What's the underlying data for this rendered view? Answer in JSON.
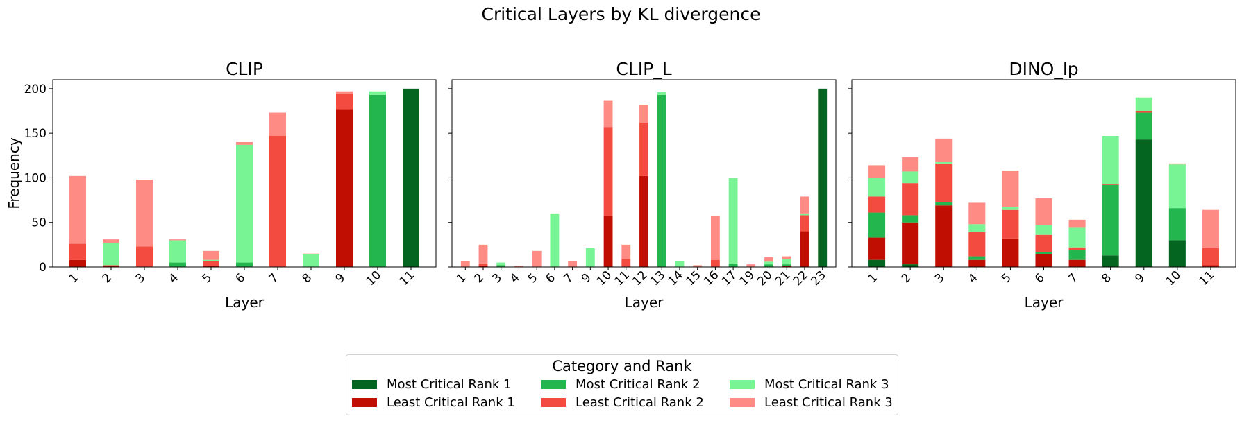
{
  "figure_title": "Critical Layers by KL divergence",
  "legend": {
    "title": "Category and Rank",
    "entries": [
      {
        "label": "Most Critical Rank 1",
        "color": "#03651f"
      },
      {
        "label": "Least Critical Rank 1",
        "color": "#c00e03"
      },
      {
        "label": "Most Critical Rank 2",
        "color": "#23b54e"
      },
      {
        "label": "Least Critical Rank 2",
        "color": "#f34b3f"
      },
      {
        "label": "Most Critical Rank 3",
        "color": "#79f494"
      },
      {
        "label": "Least Critical Rank 3",
        "color": "#fe8b84"
      }
    ]
  },
  "chart_data": [
    {
      "type": "bar",
      "stacked": true,
      "title": "CLIP",
      "xlabel": "Layer",
      "ylabel": "Frequency",
      "ylim": [
        0,
        210
      ],
      "yticks": [
        0,
        50,
        100,
        150,
        200
      ],
      "categories": [
        "1",
        "2",
        "3",
        "4",
        "5",
        "6",
        "7",
        "8",
        "9",
        "10",
        "11"
      ],
      "series": [
        {
          "name": "Most Critical Rank 1",
          "color": "#03651f",
          "values": [
            0,
            0,
            0,
            0,
            0,
            0,
            0,
            0,
            0,
            0,
            200
          ]
        },
        {
          "name": "Least Critical Rank 1",
          "color": "#c00e03",
          "values": [
            8,
            1,
            0,
            0,
            1,
            0,
            0,
            0,
            177,
            0,
            0
          ]
        },
        {
          "name": "Most Critical Rank 2",
          "color": "#23b54e",
          "values": [
            0,
            0,
            0,
            5,
            0,
            5,
            0,
            0,
            0,
            193,
            0
          ]
        },
        {
          "name": "Least Critical Rank 2",
          "color": "#f34b3f",
          "values": [
            18,
            1,
            23,
            0,
            6,
            0,
            147,
            0,
            17,
            0,
            0
          ]
        },
        {
          "name": "Most Critical Rank 3",
          "color": "#79f494",
          "values": [
            0,
            25,
            0,
            25,
            1,
            132,
            0,
            14,
            0,
            4,
            0
          ]
        },
        {
          "name": "Least Critical Rank 3",
          "color": "#fe8b84",
          "values": [
            76,
            4,
            75,
            1,
            10,
            3,
            26,
            1,
            3,
            0,
            0
          ]
        }
      ]
    },
    {
      "type": "bar",
      "stacked": true,
      "title": "CLIP_L",
      "xlabel": "Layer",
      "ylabel": "",
      "ylim": [
        0,
        210
      ],
      "yticks": [
        0,
        50,
        100,
        150,
        200
      ],
      "categories": [
        "1",
        "2",
        "3",
        "4",
        "5",
        "6",
        "7",
        "9",
        "10",
        "11",
        "12",
        "13",
        "14",
        "15",
        "16",
        "17",
        "19",
        "20",
        "21",
        "22",
        "23"
      ],
      "series": [
        {
          "name": "Most Critical Rank 1",
          "color": "#03651f",
          "values": [
            0,
            0,
            0,
            0,
            0,
            0,
            0,
            0,
            0,
            0,
            0,
            0,
            0,
            0,
            0,
            0,
            0,
            0,
            0,
            0,
            200
          ]
        },
        {
          "name": "Least Critical Rank 1",
          "color": "#c00e03",
          "values": [
            0,
            1,
            0,
            0,
            0,
            0,
            0,
            0,
            57,
            0,
            102,
            0,
            0,
            0,
            0,
            0,
            0,
            0,
            1,
            40,
            0
          ]
        },
        {
          "name": "Most Critical Rank 2",
          "color": "#23b54e",
          "values": [
            0,
            0,
            2,
            0,
            0,
            0,
            0,
            0,
            0,
            0,
            0,
            193,
            0,
            0,
            0,
            4,
            0,
            3,
            2,
            0,
            0
          ]
        },
        {
          "name": "Least Critical Rank 2",
          "color": "#f34b3f",
          "values": [
            0,
            3,
            0,
            0,
            0,
            0,
            0,
            0,
            100,
            9,
            60,
            0,
            0,
            0,
            8,
            0,
            0,
            0,
            0,
            18,
            0
          ]
        },
        {
          "name": "Most Critical Rank 3",
          "color": "#79f494",
          "values": [
            0,
            0,
            3,
            0,
            0,
            60,
            0,
            21,
            0,
            0,
            0,
            3,
            7,
            0,
            0,
            96,
            0,
            3,
            6,
            2,
            0
          ]
        },
        {
          "name": "Least Critical Rank 3",
          "color": "#fe8b84",
          "values": [
            7,
            21,
            0,
            1,
            18,
            0,
            7,
            0,
            30,
            16,
            20,
            0,
            0,
            2,
            49,
            0,
            3,
            5,
            3,
            19,
            0
          ]
        }
      ]
    },
    {
      "type": "bar",
      "stacked": true,
      "title": "DINO_lp",
      "xlabel": "Layer",
      "ylabel": "",
      "ylim": [
        0,
        210
      ],
      "yticks": [
        0,
        50,
        100,
        150,
        200
      ],
      "categories": [
        "1",
        "2",
        "3",
        "4",
        "5",
        "6",
        "7",
        "8",
        "9",
        "10",
        "11"
      ],
      "series": [
        {
          "name": "Most Critical Rank 1",
          "color": "#03651f",
          "values": [
            8,
            3,
            0,
            0,
            0,
            0,
            0,
            13,
            143,
            30,
            0
          ]
        },
        {
          "name": "Least Critical Rank 1",
          "color": "#c00e03",
          "values": [
            25,
            47,
            69,
            8,
            32,
            14,
            8,
            0,
            0,
            0,
            2
          ]
        },
        {
          "name": "Most Critical Rank 2",
          "color": "#23b54e",
          "values": [
            28,
            8,
            4,
            4,
            0,
            3,
            11,
            79,
            30,
            36,
            0
          ]
        },
        {
          "name": "Least Critical Rank 2",
          "color": "#f34b3f",
          "values": [
            18,
            36,
            43,
            27,
            32,
            19,
            3,
            1,
            2,
            0,
            19
          ]
        },
        {
          "name": "Most Critical Rank 3",
          "color": "#79f494",
          "values": [
            21,
            13,
            2,
            9,
            3,
            11,
            22,
            54,
            15,
            49,
            0
          ]
        },
        {
          "name": "Least Critical Rank 3",
          "color": "#fe8b84",
          "values": [
            14,
            16,
            26,
            24,
            41,
            30,
            9,
            0,
            0,
            1,
            43
          ]
        }
      ]
    }
  ]
}
